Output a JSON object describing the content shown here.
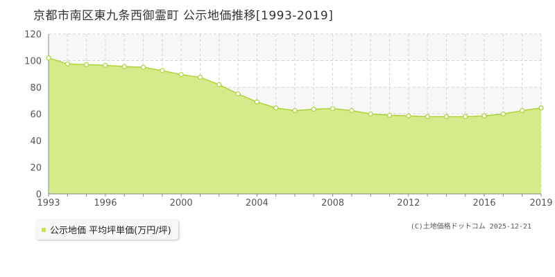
{
  "page": {
    "title": "京都市南区東九条西御霊町 公示地価推移[1993-2019]",
    "legend_label": "公示地価 平均坪単価(万円/坪)",
    "credit": "(C)土地価格ドットコム 2025-12-21"
  },
  "chart_data": {
    "type": "area",
    "title": "京都市南区東九条西御霊町 公示地価推移[1993-2019]",
    "xlim": [
      1993,
      2019
    ],
    "ylim": [
      0,
      120
    ],
    "x_ticks": [
      1993,
      1996,
      2000,
      2004,
      2008,
      2012,
      2016,
      2019
    ],
    "y_ticks": [
      0,
      20,
      40,
      60,
      80,
      100,
      120
    ],
    "grid": true,
    "legend_position": "bottom-left",
    "series": [
      {
        "name": "公示地価 平均坪単価(万円/坪)",
        "x": [
          1993,
          1994,
          1995,
          1996,
          1997,
          1998,
          1999,
          2000,
          2001,
          2002,
          2003,
          2004,
          2005,
          2006,
          2007,
          2008,
          2009,
          2010,
          2011,
          2012,
          2013,
          2014,
          2015,
          2016,
          2017,
          2018,
          2019
        ],
        "values": [
          102,
          97.5,
          97,
          96.5,
          95.5,
          95,
          92.5,
          89.5,
          87.5,
          82,
          75,
          69,
          64.5,
          62.5,
          63.5,
          64,
          62.5,
          60,
          59,
          58.5,
          58,
          58,
          58,
          58.5,
          60,
          62.5,
          64.5
        ]
      }
    ],
    "colors": {
      "fill": "#d5ea8a",
      "line": "#aed235",
      "marker_fill": "#ffffff",
      "marker_stroke": "#aed235",
      "band": "#f7f7f9",
      "grid": "#d3d3d3"
    }
  }
}
